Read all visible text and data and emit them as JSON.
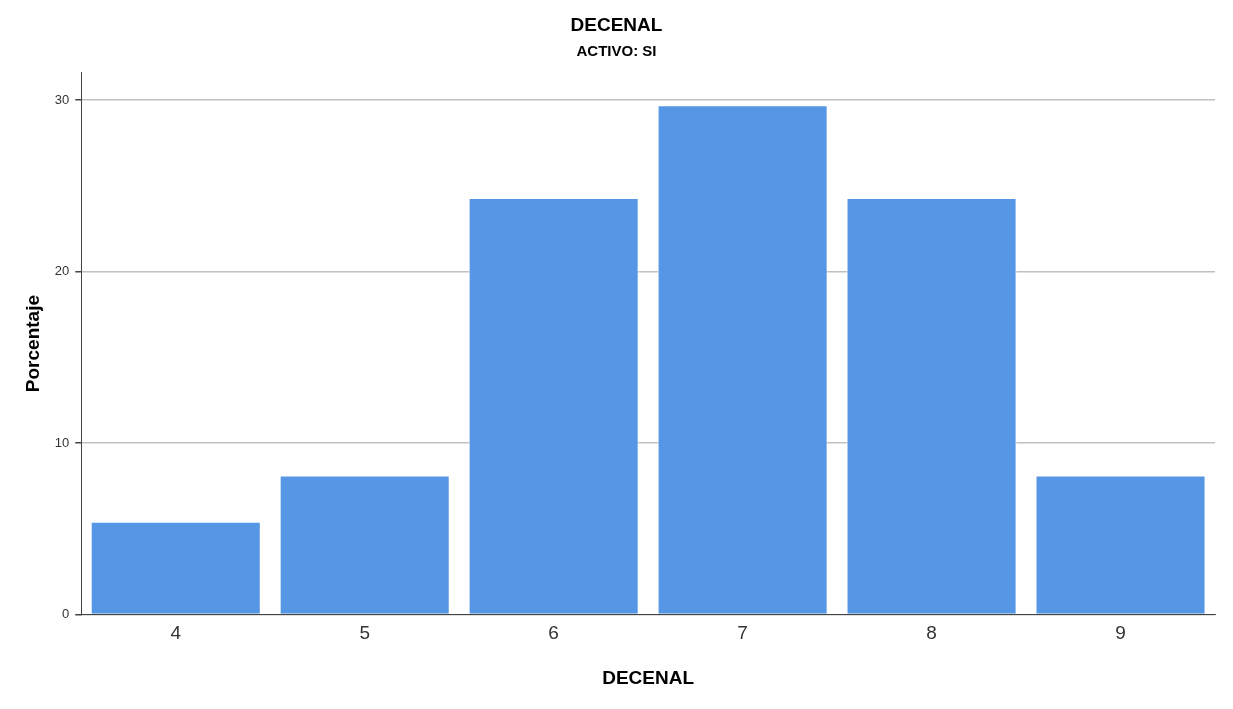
{
  "chart_data": {
    "type": "bar",
    "title": "DECENAL",
    "subtitle": "ACTIVO: SI",
    "xlabel": "DECENAL",
    "ylabel": "Porcentaje",
    "categories": [
      "4",
      "5",
      "6",
      "7",
      "8",
      "9"
    ],
    "values": [
      5.4,
      8.1,
      24.3,
      29.7,
      24.3,
      8.1
    ],
    "color": "#5596e5",
    "ylim": [
      0,
      31.6
    ],
    "yticks": [
      0,
      10,
      20,
      30
    ],
    "grid": "y",
    "legend": false
  }
}
